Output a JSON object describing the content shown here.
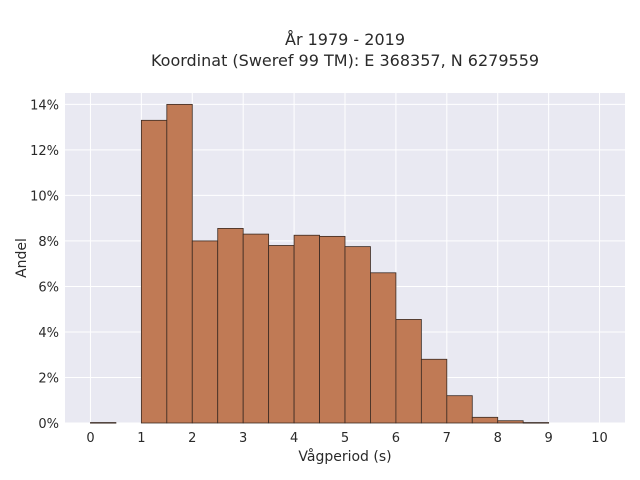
{
  "chart_data": {
    "type": "bar",
    "title_line1": "År 1979 - 2019",
    "title_line2": "Koordinat (Sweref 99 TM): E 368357, N 6279559",
    "xlabel": "Vågperiod (s)",
    "ylabel": "Andel",
    "xlim": [
      -0.5,
      10.5
    ],
    "ylim": [
      0,
      14.5
    ],
    "x_ticks": [
      0,
      1,
      2,
      3,
      4,
      5,
      6,
      7,
      8,
      9,
      10
    ],
    "x_tick_labels": [
      "0",
      "1",
      "2",
      "3",
      "4",
      "5",
      "6",
      "7",
      "8",
      "9",
      "10"
    ],
    "y_ticks": [
      0,
      2,
      4,
      6,
      8,
      10,
      12,
      14
    ],
    "y_tick_labels": [
      "0%",
      "2%",
      "4%",
      "6%",
      "8%",
      "10%",
      "12%",
      "14%"
    ],
    "bin_width": 0.5,
    "bins": [
      {
        "x0": 0.0,
        "value": 0.02
      },
      {
        "x0": 0.5,
        "value": 0.0
      },
      {
        "x0": 1.0,
        "value": 13.3
      },
      {
        "x0": 1.5,
        "value": 14.0
      },
      {
        "x0": 2.0,
        "value": 8.0
      },
      {
        "x0": 2.5,
        "value": 8.55
      },
      {
        "x0": 3.0,
        "value": 8.3
      },
      {
        "x0": 3.5,
        "value": 7.8
      },
      {
        "x0": 4.0,
        "value": 8.25
      },
      {
        "x0": 4.5,
        "value": 8.2
      },
      {
        "x0": 5.0,
        "value": 7.75
      },
      {
        "x0": 5.5,
        "value": 6.6
      },
      {
        "x0": 6.0,
        "value": 4.55
      },
      {
        "x0": 6.5,
        "value": 2.8
      },
      {
        "x0": 7.0,
        "value": 1.2
      },
      {
        "x0": 7.5,
        "value": 0.25
      },
      {
        "x0": 8.0,
        "value": 0.1
      },
      {
        "x0": 8.5,
        "value": 0.02
      }
    ],
    "grid": true,
    "colors": {
      "bar_fill": "#c07a55",
      "bar_stroke": "#3b2a22",
      "plot_bg": "#e9e9f2",
      "grid": "#ffffff"
    }
  }
}
